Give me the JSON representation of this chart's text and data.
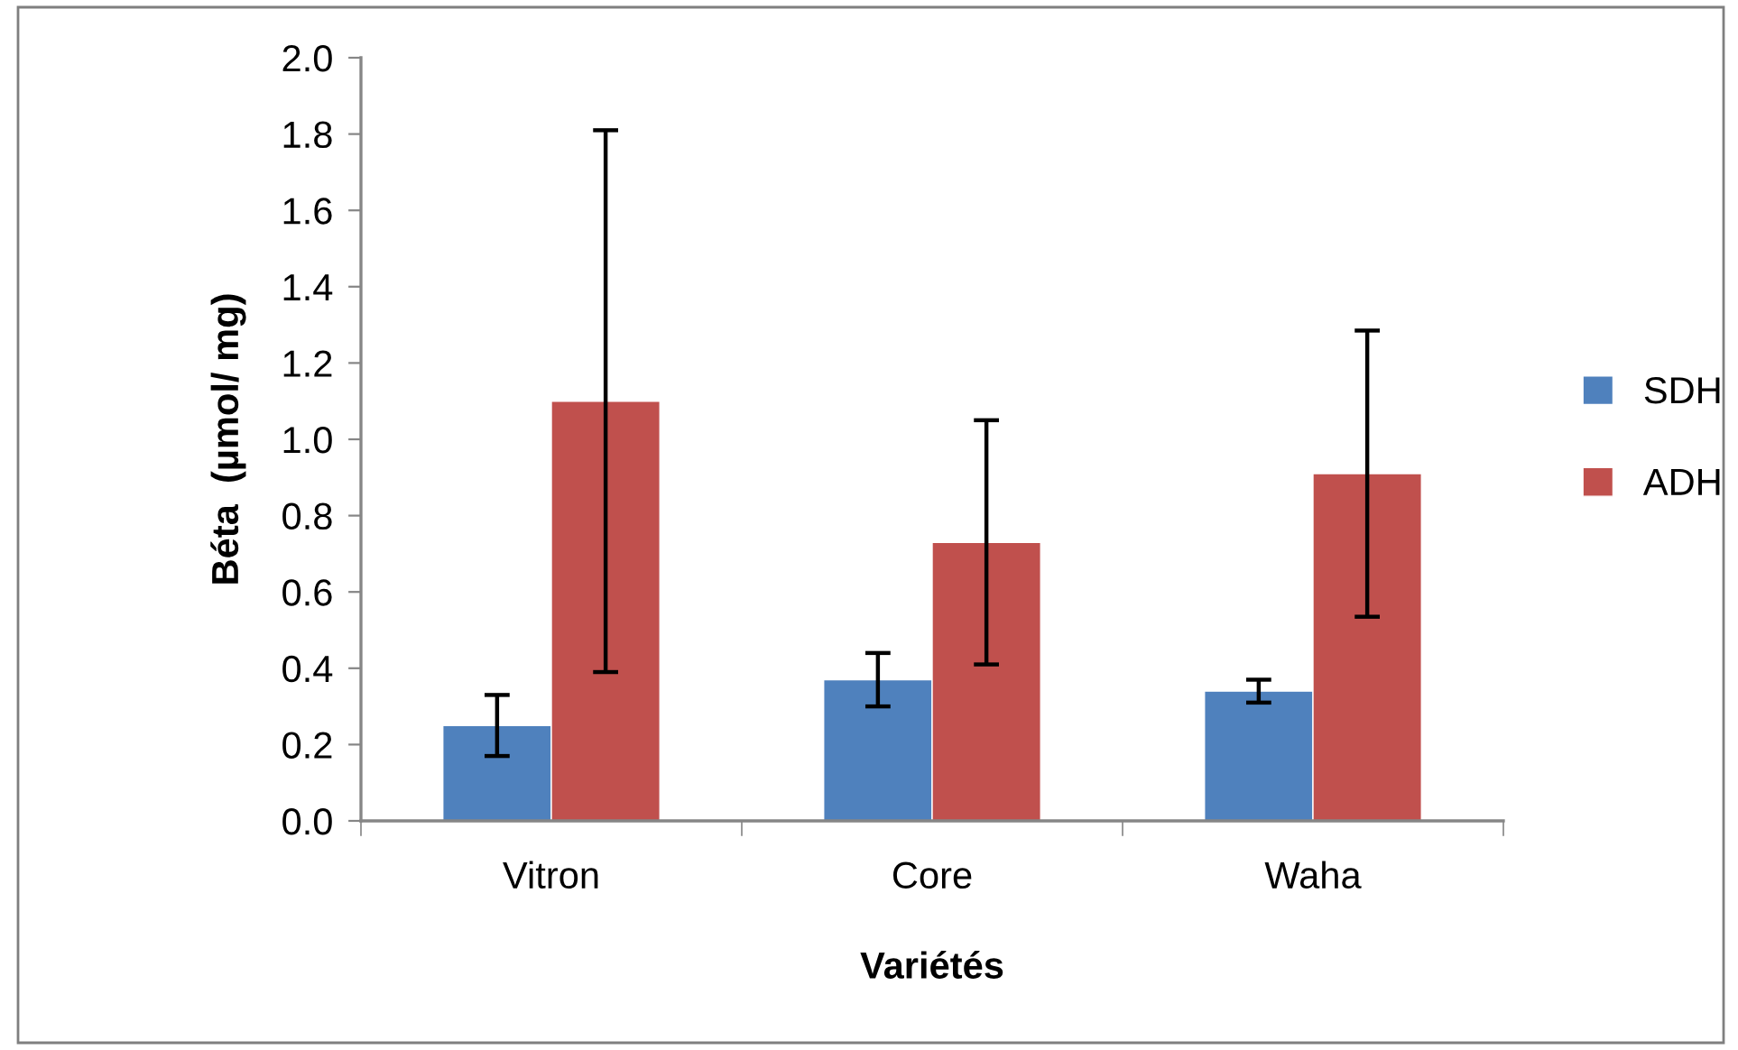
{
  "chart_data": {
    "type": "bar",
    "xlabel": "Variétés",
    "ylabel": "Béta  (µmol/ mg)",
    "categories": [
      "Vitron",
      "Core",
      "Waha"
    ],
    "series": [
      {
        "name": "SDH",
        "color": "#4f81bd",
        "values": [
          0.25,
          0.37,
          0.34
        ],
        "errors": [
          0.08,
          0.07,
          0.03
        ]
      },
      {
        "name": "ADH",
        "color": "#c0504d",
        "values": [
          1.1,
          0.73,
          0.91
        ],
        "errors": [
          0.71,
          0.32,
          0.375
        ]
      }
    ],
    "ylim": [
      0,
      2.0
    ],
    "yticks": [
      {
        "value": 0,
        "label": "0.0"
      },
      {
        "value": 0.2,
        "label": "0.2"
      },
      {
        "value": 0.4,
        "label": "0.4"
      },
      {
        "value": 0.6,
        "label": "0.6"
      },
      {
        "value": 0.8,
        "label": "0.8"
      },
      {
        "value": 1.0,
        "label": "1.0"
      },
      {
        "value": 1.2,
        "label": "1.2"
      },
      {
        "value": 1.4,
        "label": "1.4"
      },
      {
        "value": 1.6,
        "label": "1.6"
      },
      {
        "value": 1.8,
        "label": "1.8"
      },
      {
        "value": 2.0,
        "label": "2.0"
      }
    ],
    "grid": false,
    "legend": "right"
  }
}
